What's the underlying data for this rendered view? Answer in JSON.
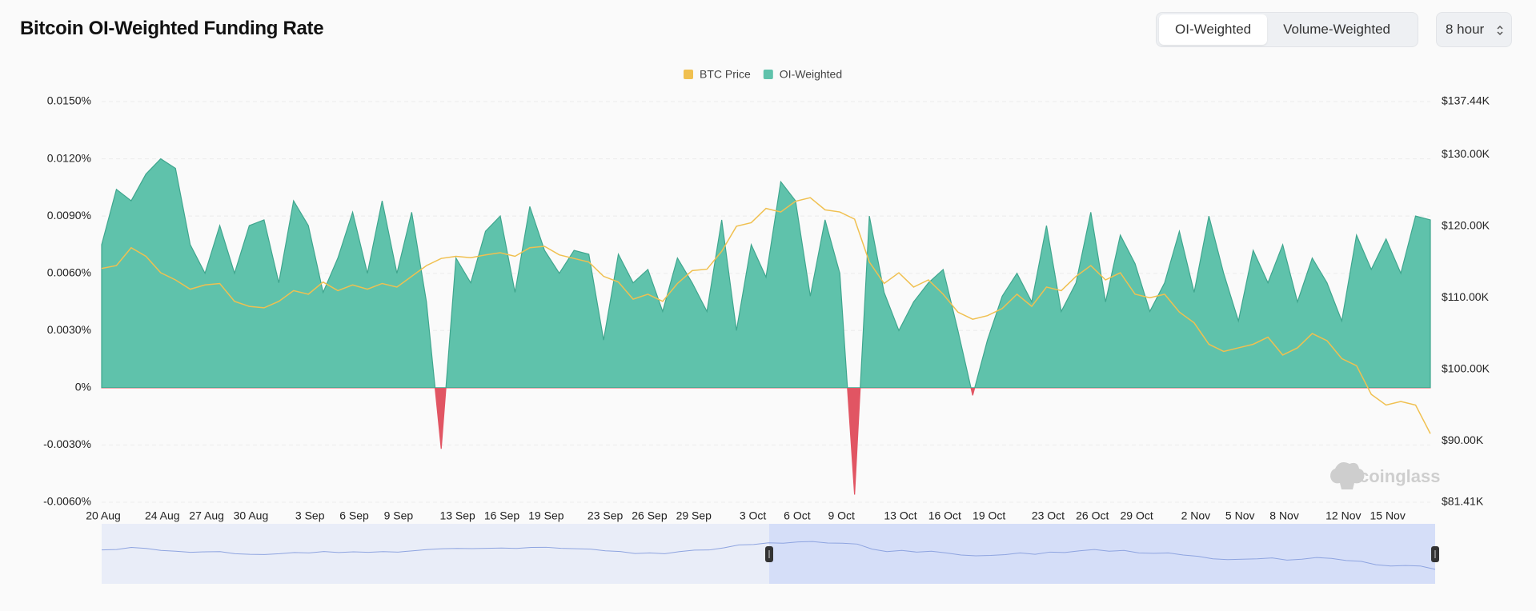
{
  "chart_data": {
    "type": "area",
    "title": "Bitcoin OI-Weighted Funding Rate",
    "watermark": "coinglass",
    "categories": [
      "20 Aug",
      null,
      null,
      null,
      "24 Aug",
      null,
      null,
      "27 Aug",
      null,
      null,
      "30 Aug",
      null,
      null,
      null,
      "3 Sep",
      null,
      null,
      "6 Sep",
      null,
      null,
      "9 Sep",
      null,
      null,
      null,
      "13 Sep",
      null,
      null,
      "16 Sep",
      null,
      null,
      "19 Sep",
      null,
      null,
      null,
      "23 Sep",
      null,
      null,
      "26 Sep",
      null,
      null,
      "29 Sep",
      null,
      null,
      null,
      "3 Oct",
      null,
      null,
      "6 Oct",
      null,
      null,
      "9 Oct",
      null,
      null,
      null,
      "13 Oct",
      null,
      null,
      "16 Oct",
      null,
      null,
      "19 Oct",
      null,
      null,
      null,
      "23 Oct",
      null,
      null,
      "26 Oct",
      null,
      null,
      "29 Oct",
      null,
      null,
      null,
      "2 Nov",
      null,
      null,
      "5 Nov",
      null,
      null,
      "8 Nov",
      null,
      null,
      null,
      "12 Nov",
      null,
      null,
      "15 Nov",
      null,
      null,
      null
    ],
    "series": [
      {
        "name": "BTC Price",
        "color": "#f0c050",
        "axis": "y2",
        "type": "line",
        "values": [
          114100,
          114500,
          117000,
          115800,
          113500,
          112500,
          111200,
          111800,
          112000,
          109500,
          108800,
          108600,
          109500,
          111000,
          110500,
          112200,
          111000,
          111800,
          111200,
          112000,
          111500,
          113000,
          114500,
          115500,
          115800,
          115600,
          116000,
          116300,
          115800,
          117000,
          117200,
          116000,
          115500,
          115000,
          113000,
          112200,
          109800,
          110500,
          109500,
          112000,
          113800,
          114000,
          116500,
          120000,
          120500,
          122500,
          122000,
          123500,
          124000,
          122300,
          122000,
          121000,
          115000,
          112000,
          113500,
          111500,
          112500,
          110500,
          108000,
          107000,
          107500,
          108500,
          110500,
          108800,
          111500,
          111000,
          113000,
          114500,
          112500,
          113500,
          110500,
          110000,
          110500,
          108000,
          106500,
          103500,
          102500,
          103000,
          103500,
          104500,
          102000,
          103000,
          105000,
          104000,
          101500,
          100500,
          96500,
          95000,
          95500,
          95000,
          91000
        ]
      },
      {
        "name": "OI-Weighted",
        "color": "#5fc2ab",
        "negative_color": "#e15563",
        "type": "area",
        "values": [
          0.0075,
          0.0104,
          0.0098,
          0.0112,
          0.012,
          0.0115,
          0.0075,
          0.006,
          0.0085,
          0.006,
          0.0085,
          0.0088,
          0.0055,
          0.0098,
          0.0085,
          0.005,
          0.0068,
          0.0092,
          0.006,
          0.0098,
          0.006,
          0.0092,
          0.0045,
          -0.0032,
          0.0068,
          0.0055,
          0.0082,
          0.009,
          0.005,
          0.0095,
          0.0072,
          0.006,
          0.0072,
          0.007,
          0.0025,
          0.007,
          0.0055,
          0.0062,
          0.004,
          0.0068,
          0.0055,
          0.004,
          0.0088,
          0.003,
          0.0075,
          0.0058,
          0.0108,
          0.0098,
          0.0048,
          0.0088,
          0.006,
          -0.0056,
          0.009,
          0.005,
          0.003,
          0.0045,
          0.0055,
          0.0062,
          0.003,
          -0.0004,
          0.0025,
          0.0048,
          0.006,
          0.0045,
          0.0085,
          0.004,
          0.0055,
          0.0092,
          0.0045,
          0.008,
          0.0065,
          0.004,
          0.0055,
          0.0082,
          0.005,
          0.009,
          0.006,
          0.0035,
          0.0072,
          0.0055,
          0.0075,
          0.0045,
          0.0068,
          0.0055,
          0.0035,
          0.008,
          0.0062,
          0.0078,
          0.006,
          0.009,
          0.0088
        ]
      }
    ],
    "ylim": [
      -0.006,
      0.015
    ],
    "yticks": [
      {
        "value": 0.015,
        "label": "0.0150%"
      },
      {
        "value": 0.012,
        "label": "0.0120%"
      },
      {
        "value": 0.009,
        "label": "0.0090%"
      },
      {
        "value": 0.006,
        "label": "0.0060%"
      },
      {
        "value": 0.003,
        "label": "0.0030%"
      },
      {
        "value": 0,
        "label": "0%"
      },
      {
        "value": -0.003,
        "label": "-0.0030%"
      },
      {
        "value": -0.006,
        "label": "-0.0060%"
      }
    ],
    "y2lim": [
      81410,
      137440
    ],
    "y2ticks": [
      {
        "value": 137440,
        "label": "$137.44K"
      },
      {
        "value": 130000,
        "label": "$130.00K"
      },
      {
        "value": 120000,
        "label": "$120.00K"
      },
      {
        "value": 110000,
        "label": "$110.00K"
      },
      {
        "value": 100000,
        "label": "$100.00K"
      },
      {
        "value": 90000,
        "label": "$90.00K"
      },
      {
        "value": 81410,
        "label": "$81.41K"
      }
    ],
    "grid": true,
    "legend": "top"
  },
  "controls": {
    "tabs": [
      "OI-Weighted",
      "Volume-Weighted"
    ],
    "interval": "8 hour"
  }
}
